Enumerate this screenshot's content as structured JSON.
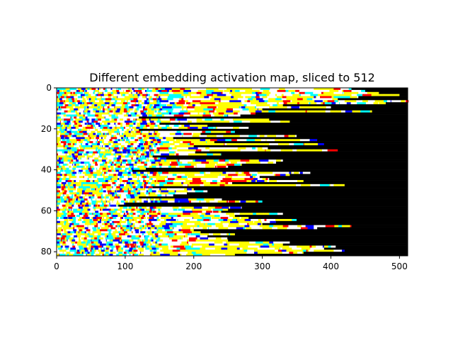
{
  "chart_data": {
    "type": "heatmap",
    "title": "Different embedding activation map, sliced to 512",
    "xlabel": "",
    "ylabel": "",
    "rows": 82,
    "cols": 512,
    "xlim": [
      0,
      512
    ],
    "ylim": [
      82,
      0
    ],
    "x_ticks": [
      0,
      100,
      200,
      300,
      400,
      500
    ],
    "y_ticks": [
      0,
      20,
      40,
      60,
      80
    ],
    "grid": false,
    "legend": "none",
    "palette": [
      "#ffff00",
      "#ffffff",
      "#00ffff",
      "#0000ff",
      "#ff0000",
      "#000000"
    ],
    "row_sequence_lengths": [
      430,
      450,
      470,
      500,
      440,
      410,
      520,
      480,
      330,
      400,
      300,
      460,
      290,
      250,
      90,
      310,
      340,
      150,
      220,
      280,
      120,
      260,
      210,
      350,
      170,
      380,
      230,
      390,
      200,
      300,
      410,
      180,
      240,
      140,
      160,
      330,
      320,
      270,
      250,
      130,
      110,
      370,
      340,
      290,
      310,
      360,
      250,
      420,
      140,
      200,
      220,
      190,
      170,
      120,
      230,
      300,
      100,
      90,
      270,
      250,
      240,
      330,
      260,
      280,
      350,
      320,
      300,
      430,
      380,
      200,
      210,
      260,
      220,
      240,
      250,
      340,
      330,
      400,
      390,
      420,
      360,
      260
    ]
  }
}
